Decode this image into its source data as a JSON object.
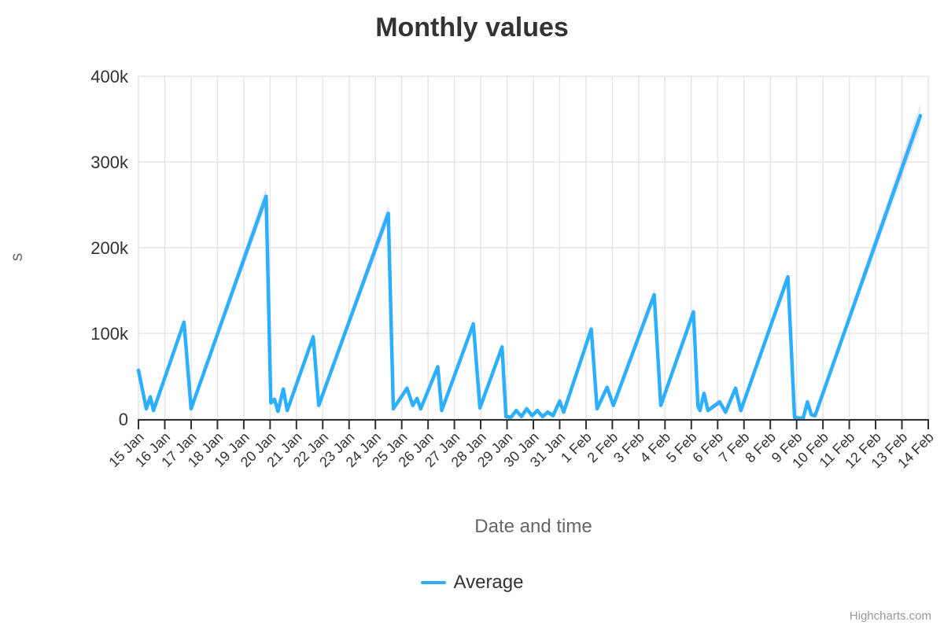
{
  "credits": "Highcharts.com",
  "chart_data": {
    "type": "line",
    "title": "Monthly values",
    "xlabel": "Date and time",
    "ylabel": "s",
    "grid": true,
    "legend_position": "bottom",
    "x_categories": [
      "15 Jan",
      "16 Jan",
      "17 Jan",
      "18 Jan",
      "19 Jan",
      "20 Jan",
      "21 Jan",
      "22 Jan",
      "23 Jan",
      "24 Jan",
      "25 Jan",
      "26 Jan",
      "27 Jan",
      "28 Jan",
      "29 Jan",
      "30 Jan",
      "31 Jan",
      "1 Feb",
      "2 Feb",
      "3 Feb",
      "4 Feb",
      "5 Feb",
      "6 Feb",
      "7 Feb",
      "8 Feb",
      "9 Feb",
      "10 Feb",
      "11 Feb",
      "12 Feb",
      "13 Feb",
      "14 Feb"
    ],
    "ylim": [
      0,
      400000
    ],
    "ytick_values_k": [
      0,
      100,
      200,
      300,
      400
    ],
    "ytick_labels": [
      "0",
      "100k",
      "200k",
      "300k",
      "400k"
    ],
    "colors": {
      "line": "#2caffe",
      "range_band": "rgba(84,79,197,0.15)",
      "gridline": "#e6e6e6",
      "axis": "#2f2f2f",
      "tick_label": "#333333"
    },
    "series": [
      {
        "name": "Average",
        "color": "#2caffe",
        "points_day_value_k": [
          [
            0,
            57
          ],
          [
            0.3,
            12
          ],
          [
            0.45,
            26
          ],
          [
            0.57,
            10
          ],
          [
            1.73,
            113
          ],
          [
            2.0,
            12
          ],
          [
            4.85,
            260
          ],
          [
            5.03,
            19
          ],
          [
            5.17,
            23
          ],
          [
            5.3,
            9
          ],
          [
            5.5,
            35
          ],
          [
            5.65,
            10
          ],
          [
            6.64,
            96
          ],
          [
            6.85,
            16
          ],
          [
            9.49,
            240
          ],
          [
            9.68,
            12
          ],
          [
            10.2,
            36
          ],
          [
            10.42,
            16
          ],
          [
            10.58,
            24
          ],
          [
            10.72,
            12
          ],
          [
            11.37,
            61
          ],
          [
            11.52,
            10
          ],
          [
            12.72,
            111
          ],
          [
            12.97,
            13
          ],
          [
            13.81,
            84
          ],
          [
            13.96,
            3
          ],
          [
            14.15,
            2
          ],
          [
            14.35,
            10
          ],
          [
            14.55,
            3
          ],
          [
            14.75,
            12
          ],
          [
            14.95,
            4
          ],
          [
            15.15,
            10
          ],
          [
            15.35,
            3
          ],
          [
            15.55,
            8
          ],
          [
            15.75,
            4
          ],
          [
            16.0,
            21
          ],
          [
            16.15,
            8
          ],
          [
            17.2,
            105
          ],
          [
            17.42,
            12
          ],
          [
            17.8,
            37
          ],
          [
            18.04,
            16
          ],
          [
            19.59,
            145
          ],
          [
            19.84,
            16
          ],
          [
            21.08,
            125
          ],
          [
            21.25,
            15
          ],
          [
            21.33,
            10
          ],
          [
            21.48,
            30
          ],
          [
            21.63,
            10
          ],
          [
            22.08,
            20
          ],
          [
            22.3,
            8
          ],
          [
            22.68,
            36
          ],
          [
            22.88,
            10
          ],
          [
            24.67,
            166
          ],
          [
            24.92,
            2
          ],
          [
            25.1,
            1
          ],
          [
            25.25,
            1
          ],
          [
            25.41,
            20
          ],
          [
            25.56,
            5
          ],
          [
            25.7,
            4
          ],
          [
            29.7,
            354
          ]
        ]
      }
    ]
  }
}
